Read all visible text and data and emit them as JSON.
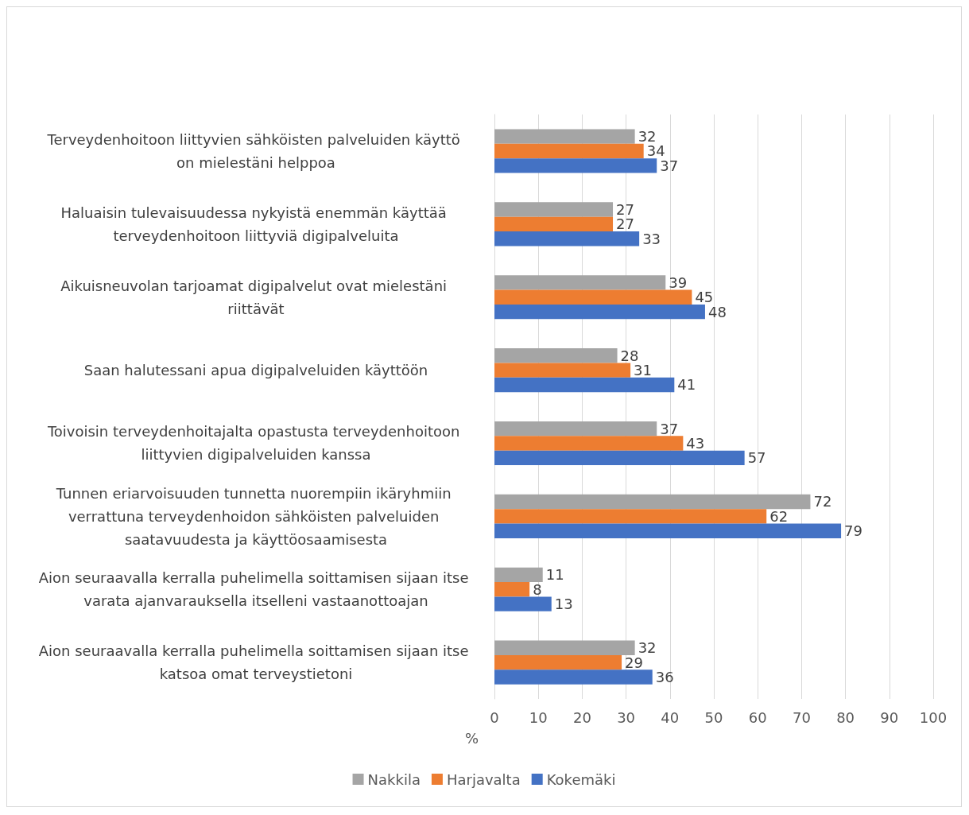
{
  "chart_data": {
    "type": "bar",
    "orientation": "horizontal",
    "ylabel": "%",
    "categories": [
      "Terveydenhoitoon liittyvien sähköisten palveluiden käyttö on mielestäni helppoa",
      "Haluaisin tulevaisuudessa nykyistä enemmän käyttää terveydenhoitoon liittyviä digipalveluita",
      "Aikuisneuvolan tarjoamat digipalvelut ovat mielestäni riittävät",
      "Saan halutessani apua digipalveluiden käyttöön",
      "Toivoisin terveydenhoitajalta opastusta terveydenhoitoon liittyvien digipalveluiden kanssa",
      "Tunnen eriarvoisuuden tunnetta nuorempiin ikäryhmiin verrattuna terveydenhoidon sähköisten palveluiden saatavuudesta ja käyttöosaamisesta",
      "Aion seuraavalla kerralla puhelimella soittamisen sijaan itse varata ajanvarauksella itselleni vastaanottoajan",
      "Aion seuraavalla kerralla puhelimella soittamisen sijaan itse katsoa omat terveystietoni"
    ],
    "series": [
      {
        "name": "Nakkila",
        "color": "#a5a5a5",
        "values": [
          32,
          27,
          39,
          28,
          37,
          72,
          11,
          32
        ]
      },
      {
        "name": "Harjavalta",
        "color": "#ed7d31",
        "values": [
          34,
          27,
          45,
          31,
          43,
          62,
          8,
          29
        ]
      },
      {
        "name": "Kokemäki",
        "color": "#4472c4",
        "values": [
          37,
          33,
          48,
          41,
          57,
          79,
          13,
          36
        ]
      }
    ],
    "xlim": [
      0,
      100
    ],
    "xticks": [
      0,
      10,
      20,
      30,
      40,
      50,
      60,
      70,
      80,
      90,
      100
    ],
    "grid": "x",
    "legend": "bottom",
    "data_labels": true
  }
}
